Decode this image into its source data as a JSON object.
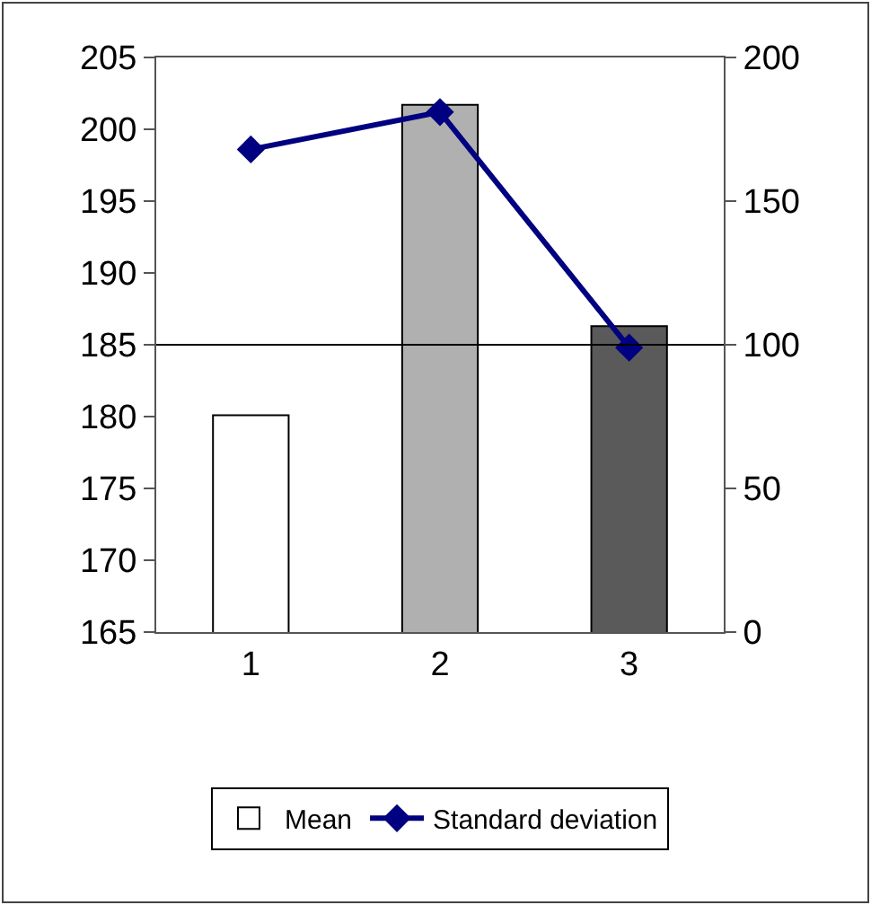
{
  "chart_data": {
    "type": "bar",
    "categories": [
      "1",
      "2",
      "3"
    ],
    "series": [
      {
        "name": "Mean",
        "colors": [
          "#ffffff",
          "#b0b0b0",
          "#5a5a5a"
        ],
        "values": [
          180.1,
          201.7,
          186.3
        ]
      },
      {
        "name": "Standard deviation",
        "type": "line",
        "axis": "y2",
        "color": "#000080",
        "values": [
          168,
          181,
          99
        ],
        "marker": "diamond"
      }
    ],
    "ylim": [
      165,
      205
    ],
    "yticks": [
      165,
      170,
      175,
      180,
      185,
      190,
      195,
      200,
      205
    ],
    "y2lim": [
      0,
      200
    ],
    "y2ticks": [
      0,
      50,
      100,
      150,
      200
    ],
    "ref_lines": [
      {
        "axis": "y2",
        "value": 100,
        "color": "#000000"
      }
    ],
    "legend": "bottom",
    "grid": false
  }
}
